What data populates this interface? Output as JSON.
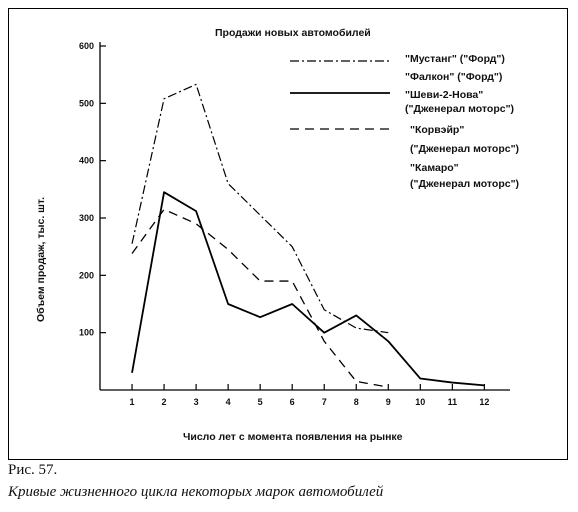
{
  "caption": {
    "figure_label": "Рис. 57.",
    "text": "Кривые жизненного цикла некоторых марок автомобилей"
  },
  "chart_data": {
    "type": "line",
    "title": "Продажи новых автомобилей",
    "xlabel": "Число лет с момента появления на рынке",
    "ylabel": "Объем продаж, тыс. шт.",
    "x_ticks": [
      "1",
      "2",
      "3",
      "4",
      "5",
      "6",
      "7",
      "8",
      "9",
      "10",
      "11",
      "12"
    ],
    "y_ticks": [
      "600",
      "500",
      "400",
      "300",
      "200",
      "100"
    ],
    "xlim": [
      0,
      12.8
    ],
    "ylim": [
      0,
      600
    ],
    "grid": false,
    "legend_position": "top-right",
    "series": [
      {
        "name": "\"Мустанг\" (\"Форд\")",
        "style": "dash-dot",
        "x": [
          1,
          2,
          3,
          4,
          5,
          6,
          7,
          8,
          9
        ],
        "y": [
          255,
          508,
          533,
          360,
          305,
          250,
          140,
          108,
          100
        ]
      },
      {
        "name": "\"Фалкон\" (\"Форд\")",
        "style": "dotted-legend-only",
        "x": [],
        "y": []
      },
      {
        "name": "\"Шеви-2-Нова\" (\"Дженерал моторс\")",
        "style": "solid",
        "x": [
          1,
          2,
          3,
          4,
          5,
          6,
          7,
          8,
          9,
          10,
          11,
          12
        ],
        "y": [
          30,
          345,
          312,
          150,
          127,
          150,
          100,
          130,
          85,
          20,
          13,
          8
        ]
      },
      {
        "name": "\"Корвэйр\" (\"Дженерал моторс\")",
        "style": "dashed",
        "x": [
          1,
          2,
          3,
          4,
          5,
          6,
          7,
          8,
          9
        ],
        "y": [
          238,
          315,
          290,
          245,
          190,
          190,
          85,
          15,
          5
        ]
      },
      {
        "name": "\"Камаро\" (\"Дженерал моторс\")",
        "style": "no-visible-line",
        "x": [],
        "y": []
      }
    ]
  }
}
